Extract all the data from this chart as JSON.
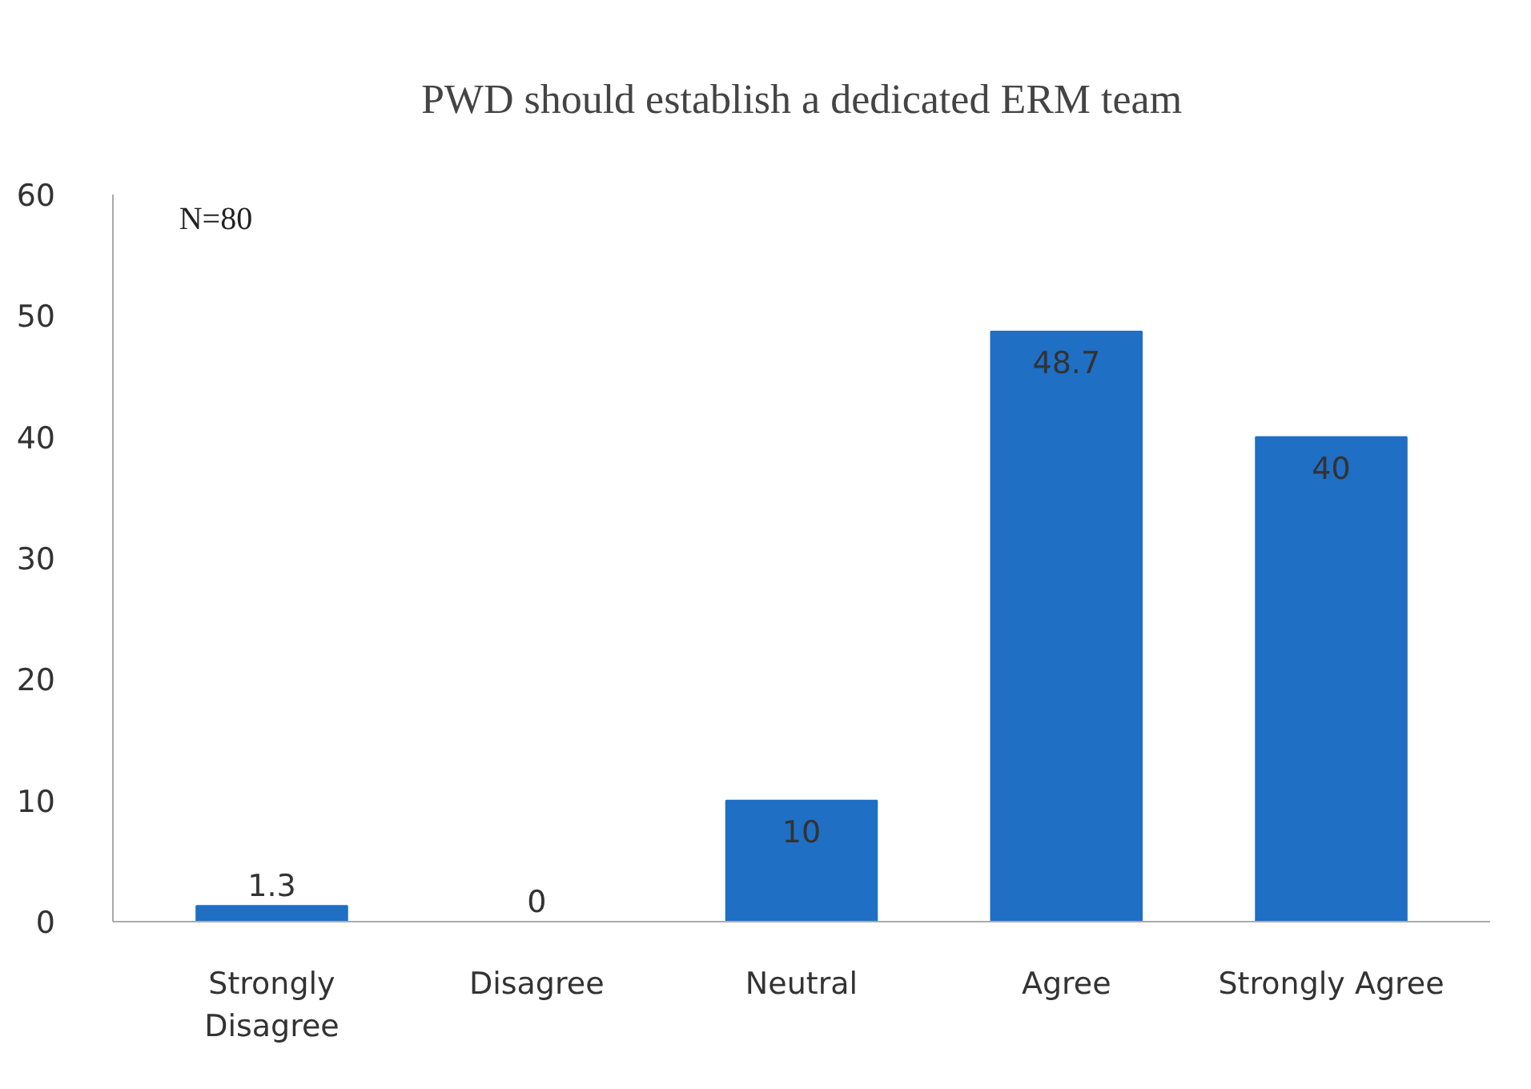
{
  "chart_data": {
    "type": "bar",
    "title": "PWD should establish a dedicated ERM team",
    "categories": [
      "Strongly\nDisagree",
      "Disagree",
      "Neutral",
      "Agree",
      "Strongly Agree"
    ],
    "values": [
      1.3,
      0,
      10,
      48.7,
      40
    ],
    "color": "#1f6fc4",
    "ylim": [
      0,
      60
    ],
    "yticks": [
      0,
      10,
      20,
      30,
      40,
      50,
      60
    ],
    "grid": false,
    "data_labels": true,
    "annotations": [
      "N=80"
    ]
  }
}
